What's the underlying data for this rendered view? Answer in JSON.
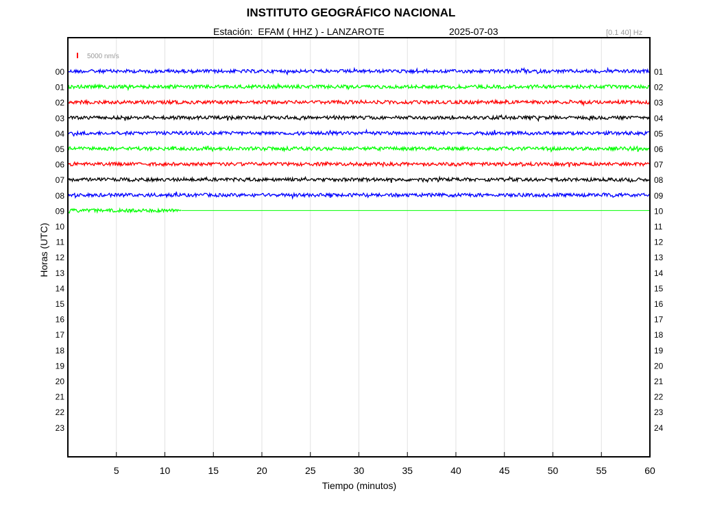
{
  "header": {
    "title": "INSTITUTO GEOGRÁFICO NACIONAL",
    "station_line": "Estación:  EFAM ( HHZ ) - LANZAROTE",
    "date": "2025-07-03",
    "filter": "[0.1 40] Hz"
  },
  "chart_data": {
    "type": "line",
    "title": "INSTITUTO GEOGRÁFICO NACIONAL",
    "subtitle": "Estación:  EFAM ( HHZ ) - LANZAROTE",
    "date": "2025-07-03",
    "filter_band": "[0.1 40] Hz",
    "xlabel": "Tiempo (minutos)",
    "ylabel": "Horas (UTC)",
    "xlim": [
      0,
      60
    ],
    "x_ticks": [
      5,
      10,
      15,
      20,
      25,
      30,
      35,
      40,
      45,
      50,
      55,
      60
    ],
    "left_hour_labels": [
      "00",
      "01",
      "02",
      "03",
      "04",
      "05",
      "06",
      "07",
      "08",
      "09",
      "10",
      "11",
      "12",
      "13",
      "14",
      "15",
      "16",
      "17",
      "18",
      "19",
      "20",
      "21",
      "22",
      "23"
    ],
    "right_hour_labels": [
      "01",
      "02",
      "03",
      "04",
      "05",
      "06",
      "07",
      "08",
      "09",
      "10",
      "11",
      "12",
      "13",
      "14",
      "15",
      "16",
      "17",
      "18",
      "19",
      "20",
      "21",
      "22",
      "23",
      "24"
    ],
    "scale_label": "5000 nm/s",
    "scale_color": "#ff0000",
    "grid": "vertical lines",
    "trace_colors": [
      "#0000ff",
      "#00ff00",
      "#ff0000",
      "#000000"
    ],
    "traces": [
      {
        "hour": "00",
        "color": "#0000ff",
        "recorded_until_min": 60
      },
      {
        "hour": "01",
        "color": "#00ff00",
        "recorded_until_min": 60
      },
      {
        "hour": "02",
        "color": "#ff0000",
        "recorded_until_min": 60
      },
      {
        "hour": "03",
        "color": "#000000",
        "recorded_until_min": 60
      },
      {
        "hour": "04",
        "color": "#0000ff",
        "recorded_until_min": 60
      },
      {
        "hour": "05",
        "color": "#00ff00",
        "recorded_until_min": 60
      },
      {
        "hour": "06",
        "color": "#ff0000",
        "recorded_until_min": 60
      },
      {
        "hour": "07",
        "color": "#000000",
        "recorded_until_min": 60
      },
      {
        "hour": "08",
        "color": "#0000ff",
        "recorded_until_min": 60
      },
      {
        "hour": "09",
        "color": "#00ff00",
        "recorded_until_min": 11.7
      }
    ]
  }
}
